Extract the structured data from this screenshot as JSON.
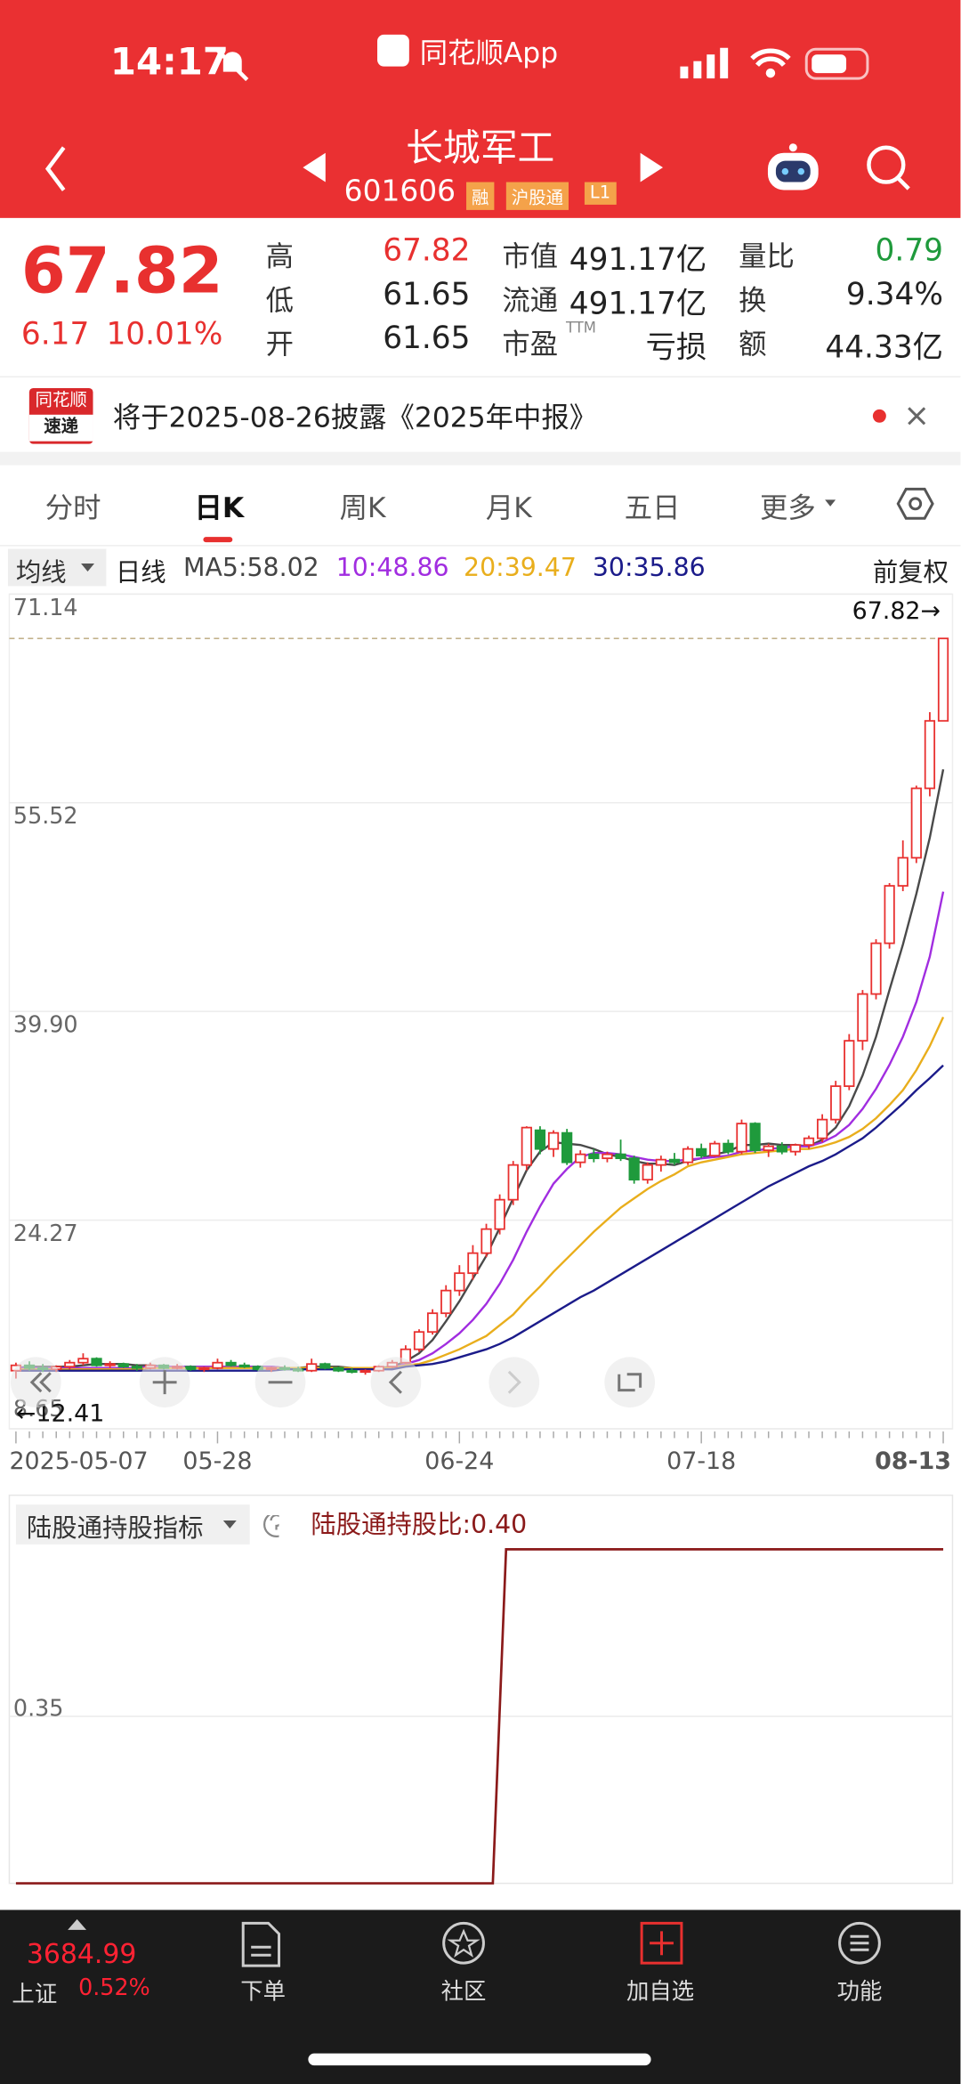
{
  "status_bar": {
    "time": "14:17",
    "app": "同花顺App"
  },
  "header": {
    "title": "长城军工",
    "code": "601606",
    "tags": [
      "融",
      "沪股通",
      "L1"
    ]
  },
  "quote": {
    "price": "67.82",
    "change": "6.17",
    "change_pct": "10.01%",
    "ttm": "TTM",
    "fields": [
      [
        "高",
        "67.82"
      ],
      [
        "低",
        "61.65"
      ],
      [
        "开",
        "61.65"
      ],
      [
        "市值",
        "491.17亿"
      ],
      [
        "流通",
        "491.17亿"
      ],
      [
        "市盈",
        "亏损"
      ],
      [
        "量比",
        "0.79"
      ],
      [
        "换",
        "9.34%"
      ],
      [
        "额",
        "44.33亿"
      ]
    ]
  },
  "banner": {
    "logo_top": "同花顺",
    "logo_bottom": "速递",
    "text": "将于2025-08-26披露《2025年中报》"
  },
  "tabs": [
    "分时",
    "日K",
    "周K",
    "月K",
    "五日",
    "更多"
  ],
  "ma_bar": {
    "selector": "均线",
    "period": "日线",
    "adjust": "前复权"
  },
  "chart_data": [
    {
      "type": "candlestick",
      "up_color": "#e8302f",
      "down_color": "#1f9a3c",
      "categories": [
        "2025-05-07",
        null,
        null,
        null,
        null,
        null,
        null,
        null,
        null,
        null,
        null,
        null,
        null,
        null,
        null,
        "05-28",
        null,
        null,
        null,
        null,
        null,
        null,
        null,
        null,
        null,
        null,
        null,
        null,
        null,
        null,
        null,
        null,
        null,
        "06-24",
        null,
        null,
        null,
        null,
        null,
        null,
        null,
        null,
        null,
        null,
        null,
        null,
        null,
        null,
        null,
        null,
        null,
        "07-18",
        null,
        null,
        null,
        null,
        null,
        null,
        null,
        null,
        null,
        null,
        null,
        null,
        null,
        null,
        null,
        null,
        null,
        "08-13"
      ],
      "open": [
        13.0,
        13.4,
        13.2,
        13.1,
        13.3,
        13.6,
        13.9,
        13.4,
        13.5,
        13.3,
        13.2,
        13.4,
        13.2,
        13.3,
        13.1,
        13.2,
        13.6,
        13.4,
        13.3,
        13.1,
        13.2,
        13.1,
        13.0,
        13.5,
        13.2,
        13.0,
        12.9,
        13.0,
        13.3,
        13.6,
        14.6,
        15.9,
        17.3,
        19.0,
        20.3,
        21.8,
        23.6,
        25.8,
        28.4,
        31.0,
        29.6,
        30.8,
        28.6,
        29.2,
        28.9,
        29.2,
        28.9,
        27.3,
        28.4,
        28.8,
        28.6,
        29.6,
        29.1,
        30.0,
        29.4,
        31.5,
        29.5,
        29.8,
        29.4,
        29.9,
        30.4,
        31.8,
        34.3,
        37.7,
        41.2,
        45.0,
        49.3,
        51.4,
        56.6,
        61.65
      ],
      "high": [
        13.6,
        13.7,
        13.5,
        13.4,
        13.8,
        14.3,
        14.0,
        13.7,
        13.6,
        13.5,
        13.6,
        13.5,
        13.5,
        13.4,
        13.3,
        13.9,
        13.8,
        13.6,
        13.4,
        13.3,
        13.4,
        13.3,
        13.9,
        13.6,
        13.3,
        13.2,
        13.1,
        13.4,
        13.8,
        14.9,
        16.1,
        17.6,
        19.4,
        20.9,
        22.4,
        24.0,
        26.2,
        28.7,
        31.3,
        31.3,
        31.0,
        31.1,
        29.5,
        29.6,
        29.4,
        30.3,
        29.1,
        28.6,
        29.1,
        29.3,
        29.8,
        30.0,
        30.2,
        30.3,
        31.8,
        31.6,
        30.0,
        30.1,
        30.0,
        30.6,
        32.2,
        34.7,
        38.2,
        41.5,
        45.3,
        49.5,
        52.7,
        56.8,
        62.3,
        67.82
      ],
      "low": [
        12.41,
        13.0,
        12.9,
        12.9,
        13.1,
        13.4,
        13.3,
        13.2,
        13.2,
        13.0,
        13.1,
        13.1,
        13.1,
        13.0,
        12.9,
        13.1,
        13.3,
        13.2,
        13.0,
        12.9,
        13.0,
        12.9,
        12.9,
        13.1,
        12.9,
        12.8,
        12.7,
        12.9,
        13.2,
        13.5,
        14.4,
        15.7,
        17.0,
        18.6,
        19.8,
        21.5,
        23.2,
        25.4,
        28.0,
        29.2,
        29.0,
        28.4,
        28.2,
        28.6,
        28.6,
        28.7,
        27.0,
        27.0,
        27.9,
        28.4,
        28.4,
        28.9,
        29.0,
        29.2,
        29.2,
        29.3,
        29.0,
        29.2,
        29.1,
        29.6,
        30.1,
        31.5,
        34.0,
        37.0,
        40.8,
        44.6,
        48.9,
        51.0,
        56.0,
        61.65
      ],
      "close": [
        13.4,
        13.2,
        13.1,
        13.3,
        13.6,
        13.9,
        13.4,
        13.5,
        13.3,
        13.2,
        13.4,
        13.2,
        13.3,
        13.1,
        13.2,
        13.6,
        13.4,
        13.3,
        13.1,
        13.2,
        13.1,
        13.0,
        13.5,
        13.2,
        13.0,
        12.9,
        13.0,
        13.3,
        13.6,
        14.6,
        15.9,
        17.3,
        19.0,
        20.3,
        21.8,
        23.6,
        25.8,
        28.4,
        31.2,
        29.6,
        30.8,
        28.6,
        29.2,
        28.9,
        29.2,
        28.9,
        27.3,
        28.4,
        28.8,
        28.6,
        29.6,
        29.1,
        30.0,
        29.4,
        31.5,
        29.5,
        29.8,
        29.4,
        29.9,
        30.4,
        31.8,
        34.3,
        37.7,
        41.2,
        45.0,
        49.3,
        51.4,
        56.6,
        61.65,
        67.82
      ],
      "series": [
        {
          "name": "MA5:58.02",
          "color": "#4a4a4a",
          "values": [
            13.2,
            13.3,
            13.3,
            13.3,
            13.3,
            13.4,
            13.5,
            13.5,
            13.5,
            13.4,
            13.4,
            13.3,
            13.3,
            13.3,
            13.2,
            13.3,
            13.3,
            13.3,
            13.3,
            13.3,
            13.2,
            13.2,
            13.3,
            13.3,
            13.3,
            13.2,
            13.1,
            13.2,
            13.3,
            13.7,
            14.3,
            15.3,
            16.7,
            18.2,
            19.9,
            21.6,
            23.7,
            25.9,
            28.0,
            29.4,
            30.1,
            30.0,
            29.9,
            29.6,
            29.2,
            29.0,
            28.7,
            28.5,
            28.5,
            28.4,
            28.7,
            28.9,
            29.2,
            29.4,
            29.9,
            29.9,
            30.0,
            29.9,
            29.9,
            29.8,
            30.3,
            31.2,
            32.8,
            35.1,
            38.0,
            41.5,
            44.9,
            48.7,
            52.9,
            58.02
          ]
        },
        {
          "name": "10:48.86",
          "color": "#a12de0",
          "values": [
            13.2,
            13.2,
            13.2,
            13.2,
            13.2,
            13.2,
            13.2,
            13.2,
            13.2,
            13.2,
            13.3,
            13.3,
            13.3,
            13.3,
            13.3,
            13.3,
            13.3,
            13.3,
            13.3,
            13.3,
            13.2,
            13.2,
            13.2,
            13.2,
            13.2,
            13.2,
            13.2,
            13.2,
            13.2,
            13.5,
            13.8,
            14.3,
            15.0,
            15.8,
            16.8,
            18.0,
            19.5,
            21.3,
            23.4,
            25.3,
            27.0,
            28.1,
            29.0,
            29.3,
            29.3,
            29.2,
            29.0,
            28.8,
            28.7,
            28.7,
            28.8,
            28.9,
            29.0,
            29.1,
            29.4,
            29.5,
            29.6,
            29.7,
            29.8,
            29.8,
            30.1,
            30.6,
            31.4,
            32.6,
            34.1,
            35.9,
            38.0,
            40.6,
            44.0,
            48.86
          ]
        },
        {
          "name": "20:39.47",
          "color": "#e9ae1c",
          "values": [
            13.1,
            13.1,
            13.1,
            13.1,
            13.1,
            13.1,
            13.1,
            13.1,
            13.1,
            13.1,
            13.2,
            13.2,
            13.2,
            13.2,
            13.2,
            13.2,
            13.2,
            13.2,
            13.2,
            13.2,
            13.2,
            13.2,
            13.2,
            13.2,
            13.2,
            13.2,
            13.2,
            13.2,
            13.2,
            13.4,
            13.5,
            13.8,
            14.2,
            14.6,
            15.1,
            15.6,
            16.4,
            17.2,
            18.3,
            19.3,
            20.4,
            21.4,
            22.4,
            23.4,
            24.3,
            25.2,
            25.9,
            26.6,
            27.2,
            27.7,
            28.3,
            28.6,
            28.8,
            29.0,
            29.2,
            29.3,
            29.4,
            29.5,
            29.6,
            29.6,
            29.8,
            30.1,
            30.5,
            31.1,
            31.9,
            32.9,
            34.0,
            35.5,
            37.3,
            39.47
          ]
        },
        {
          "name": "30:35.86",
          "color": "#1b1b8a",
          "values": [
            13.0,
            13.0,
            13.0,
            13.0,
            13.0,
            13.0,
            13.0,
            13.0,
            13.0,
            13.0,
            13.0,
            13.0,
            13.0,
            13.0,
            13.0,
            13.0,
            13.0,
            13.0,
            13.0,
            13.0,
            13.1,
            13.1,
            13.1,
            13.1,
            13.1,
            13.1,
            13.1,
            13.1,
            13.1,
            13.3,
            13.4,
            13.5,
            13.7,
            14.0,
            14.3,
            14.6,
            15.0,
            15.5,
            16.1,
            16.7,
            17.3,
            17.9,
            18.5,
            19.0,
            19.6,
            20.2,
            20.8,
            21.4,
            22.0,
            22.6,
            23.2,
            23.8,
            24.4,
            25.0,
            25.6,
            26.2,
            26.8,
            27.3,
            27.8,
            28.3,
            28.7,
            29.2,
            29.8,
            30.4,
            31.2,
            32.1,
            33.0,
            34.0,
            34.9,
            35.86
          ]
        }
      ],
      "ylim": [
        8.65,
        71.14
      ],
      "yticks": [
        8.65,
        24.27,
        {
          "value": 39.9,
          "label": "39.90"
        },
        55.52,
        71.14
      ],
      "grid": true,
      "max_label": "67.82→",
      "min_label": "←12.41"
    },
    {
      "type": "line",
      "title": "陆股通持股指标",
      "series": [
        {
          "name": "陆股通持股比:0.40",
          "color": "#8b1a1a",
          "values": [
            0.3,
            0.3,
            0.3,
            0.3,
            0.3,
            0.3,
            0.3,
            0.3,
            0.3,
            0.3,
            0.3,
            0.3,
            0.3,
            0.3,
            0.3,
            0.3,
            0.3,
            0.3,
            0.3,
            0.3,
            0.3,
            0.3,
            0.3,
            0.3,
            0.3,
            0.3,
            0.3,
            0.3,
            0.3,
            0.3,
            0.3,
            0.3,
            0.3,
            0.3,
            0.3,
            0.3,
            0.3,
            0.4,
            0.4,
            0.4,
            0.4,
            0.4,
            0.4,
            0.4,
            0.4,
            0.4,
            0.4,
            0.4,
            0.4,
            0.4,
            0.4,
            0.4,
            0.4,
            0.4,
            0.4,
            0.4,
            0.4,
            0.4,
            0.4,
            0.4,
            0.4,
            0.4,
            0.4,
            0.4,
            0.4,
            0.4,
            0.4,
            0.4,
            0.4,
            0.4,
            0.4
          ]
        }
      ],
      "ylim": [
        0.3,
        0.415
      ],
      "yticks": [
        0.35
      ],
      "grid": true
    }
  ],
  "bottom_bar": {
    "index_value": "3684.99",
    "index_name": "上证",
    "index_pct": "0.52%",
    "items": [
      "下单",
      "社区",
      "加自选",
      "功能"
    ]
  }
}
